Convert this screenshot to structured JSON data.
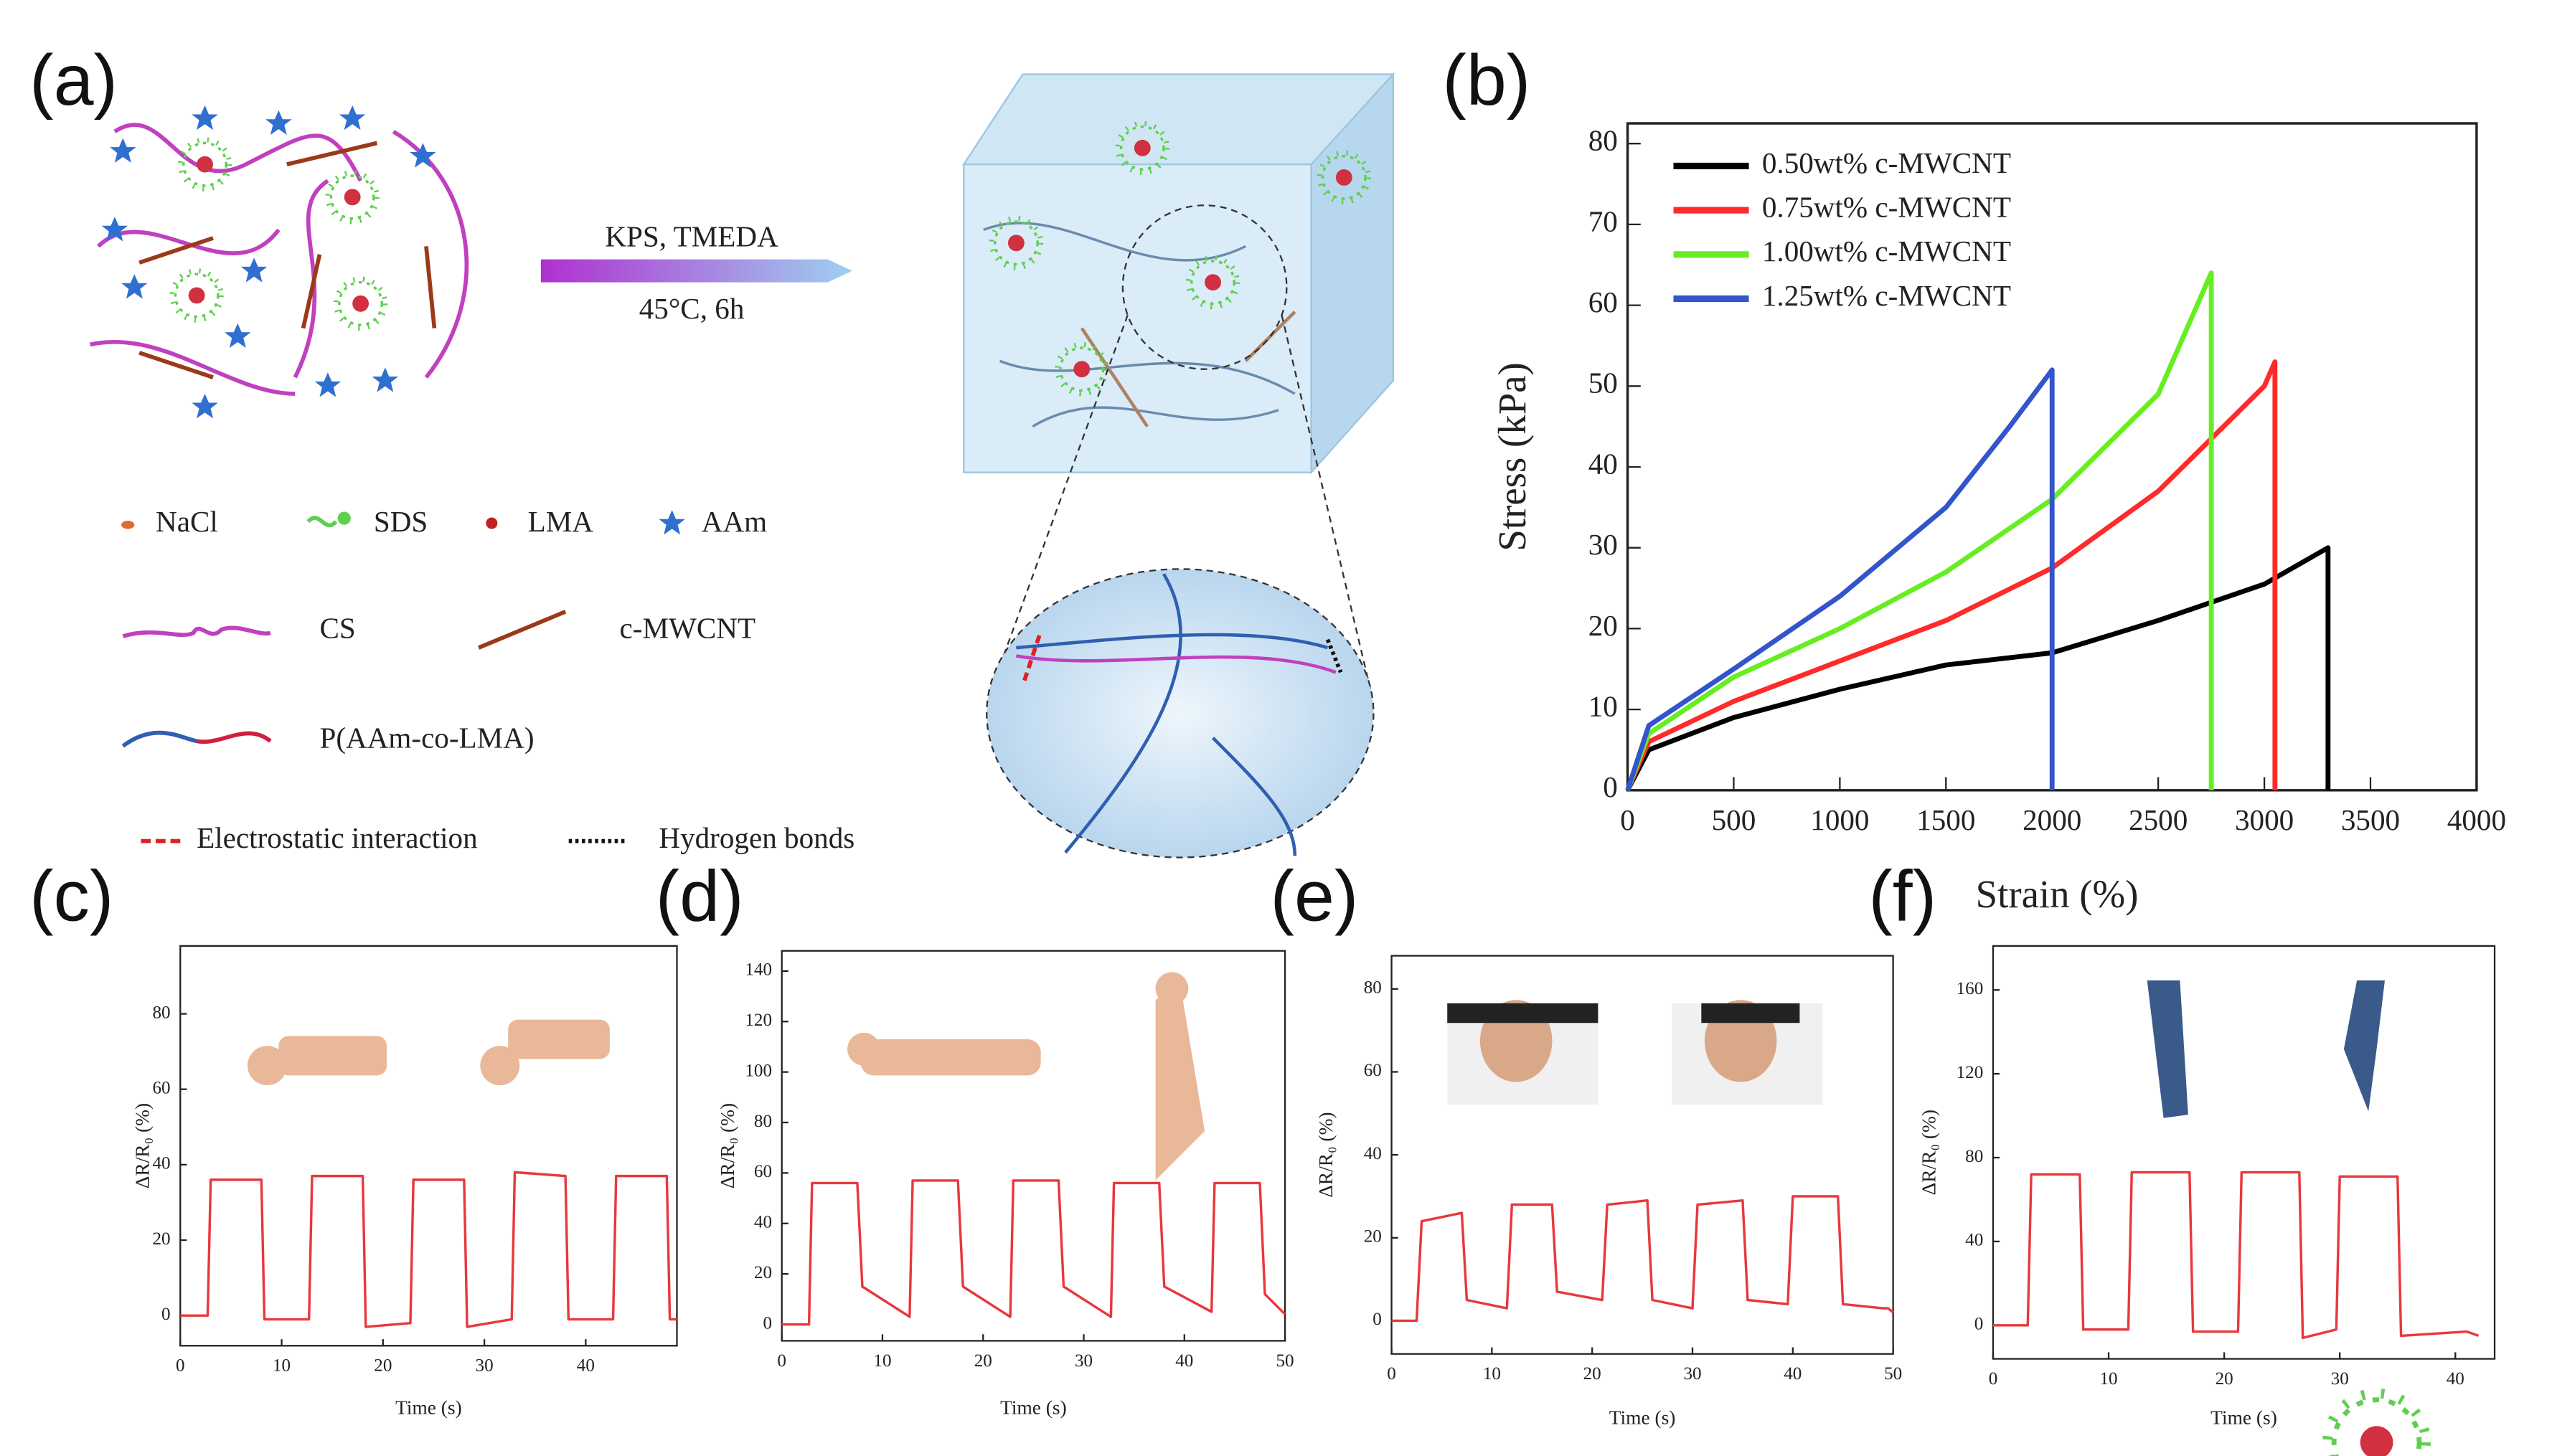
{
  "diagram": {
    "panel": "(a)",
    "reaction": [
      "KPS, TMEDA",
      "45°C, 6h"
    ],
    "legend": [
      "NaCl",
      "SDS",
      "LMA",
      "AAm",
      "CS",
      "c-MWCNT",
      "P(AAm-co-LMA)",
      "Electrostatic interaction",
      "Hydrogen bonds"
    ]
  },
  "chart_data": [
    {
      "type": "line",
      "panel": "(b)",
      "xlabel": "Strain (%)",
      "ylabel": "Stress (kPa)",
      "xlim": [
        0,
        4000
      ],
      "ylim": [
        0,
        82.5
      ],
      "xticks": [
        0,
        500,
        1000,
        1500,
        2000,
        2500,
        3000,
        3500,
        4000
      ],
      "yticks": [
        0,
        10,
        20,
        30,
        40,
        50,
        60,
        70,
        80
      ],
      "legend": "upper left",
      "series": [
        {
          "name": "0.50wt% c-MWCNT",
          "color": "#000000",
          "x": [
            0,
            100,
            500,
            1000,
            1500,
            2000,
            2500,
            3000,
            3300,
            3300
          ],
          "values": [
            0,
            5,
            9,
            12.5,
            15.5,
            17,
            21,
            25.5,
            30,
            0
          ]
        },
        {
          "name": "0.75wt% c-MWCNT",
          "color": "#ff2a2a",
          "x": [
            0,
            100,
            500,
            1000,
            1500,
            2000,
            2500,
            3000,
            3050,
            3050
          ],
          "values": [
            0,
            6,
            11,
            16,
            21,
            27.5,
            37,
            50,
            53,
            0
          ]
        },
        {
          "name": "1.00wt% c-MWCNT",
          "color": "#66ee22",
          "x": [
            0,
            100,
            500,
            1000,
            1500,
            2000,
            2500,
            2750,
            2750
          ],
          "values": [
            0,
            7,
            14,
            20,
            27,
            36,
            49,
            64,
            0
          ]
        },
        {
          "name": "1.25wt% c-MWCNT",
          "color": "#3355cc",
          "x": [
            0,
            100,
            500,
            1000,
            1500,
            1800,
            2000,
            2000
          ],
          "values": [
            0,
            8,
            15,
            24,
            35,
            45,
            52,
            0
          ]
        }
      ]
    },
    {
      "type": "line",
      "panel": "(c)",
      "xlabel": "Time (s)",
      "ylabel": "ΔR/R₀ (%)",
      "xlim": [
        0,
        49
      ],
      "ylim": [
        -8,
        98
      ],
      "xticks": [
        0,
        10,
        20,
        30,
        40
      ],
      "yticks": [
        0,
        20,
        40,
        60,
        80
      ],
      "series": [
        {
          "color": "#e8383d",
          "x": [
            0,
            2.7,
            3,
            8,
            8.3,
            12.7,
            13,
            18,
            18.3,
            22.7,
            23,
            28,
            28.3,
            32.7,
            33,
            38,
            38.3,
            42.7,
            43,
            48,
            48.3,
            49
          ],
          "values": [
            0,
            0,
            36,
            36,
            -1,
            -1,
            37,
            37,
            -3,
            -2,
            36,
            36,
            -3,
            -1,
            38,
            37,
            -1,
            -1,
            37,
            37,
            -1,
            -1
          ]
        }
      ]
    },
    {
      "type": "line",
      "panel": "(d)",
      "xlabel": "Time (s)",
      "ylabel": "ΔR/R₀ (%)",
      "xlim": [
        0,
        50
      ],
      "ylim": [
        -6.5,
        148
      ],
      "xticks": [
        0,
        10,
        20,
        30,
        40,
        50
      ],
      "yticks": [
        0,
        20,
        40,
        60,
        80,
        100,
        120,
        140
      ],
      "series": [
        {
          "color": "#e8383d",
          "x": [
            0,
            2.7,
            3,
            7.5,
            8,
            12.7,
            13,
            17.5,
            18,
            22.7,
            23,
            27.5,
            28,
            32.7,
            33,
            37.5,
            38,
            42.7,
            43,
            47.5,
            48,
            50
          ],
          "values": [
            0,
            0,
            56,
            56,
            15,
            3,
            57,
            57,
            15,
            3,
            57,
            57,
            15,
            3,
            56,
            56,
            15,
            5,
            56,
            56,
            12,
            4
          ]
        }
      ]
    },
    {
      "type": "line",
      "panel": "(e)",
      "xlabel": "Time (s)",
      "ylabel": "ΔR/R₀ (%)",
      "xlim": [
        0,
        50
      ],
      "ylim": [
        -8,
        88
      ],
      "xticks": [
        0,
        10,
        20,
        30,
        40,
        50
      ],
      "yticks": [
        0,
        20,
        40,
        60,
        80
      ],
      "series": [
        {
          "color": "#e8383d",
          "x": [
            0,
            2.5,
            3,
            7,
            7.5,
            11.5,
            12,
            16,
            16.5,
            21,
            21.5,
            25.5,
            26,
            30,
            30.5,
            35,
            35.5,
            39.5,
            40,
            44.5,
            45,
            49,
            49.5,
            50
          ],
          "values": [
            0,
            0,
            24,
            26,
            5,
            3,
            28,
            28,
            7,
            5,
            28,
            29,
            5,
            3,
            28,
            29,
            5,
            4,
            30,
            30,
            4,
            3,
            3,
            2
          ]
        }
      ]
    },
    {
      "type": "line",
      "panel": "(f)",
      "xlabel": "Time (s)",
      "ylabel": "ΔR/R₀ (%)",
      "xlim": [
        0,
        43.4
      ],
      "ylim": [
        -16,
        181
      ],
      "xticks": [
        0,
        10,
        20,
        30,
        40
      ],
      "yticks": [
        0,
        40,
        80,
        120,
        160
      ],
      "series": [
        {
          "color": "#e8383d",
          "x": [
            0,
            3,
            3.3,
            7.5,
            7.8,
            11.7,
            12,
            17,
            17.3,
            21.2,
            21.5,
            26.5,
            26.8,
            29.7,
            30,
            35,
            35.3,
            41,
            42
          ],
          "values": [
            0,
            0,
            72,
            72,
            -2,
            -2,
            73,
            73,
            -3,
            -3,
            73,
            73,
            -6,
            -2,
            71,
            71,
            -5,
            -3,
            -5
          ]
        }
      ]
    }
  ]
}
